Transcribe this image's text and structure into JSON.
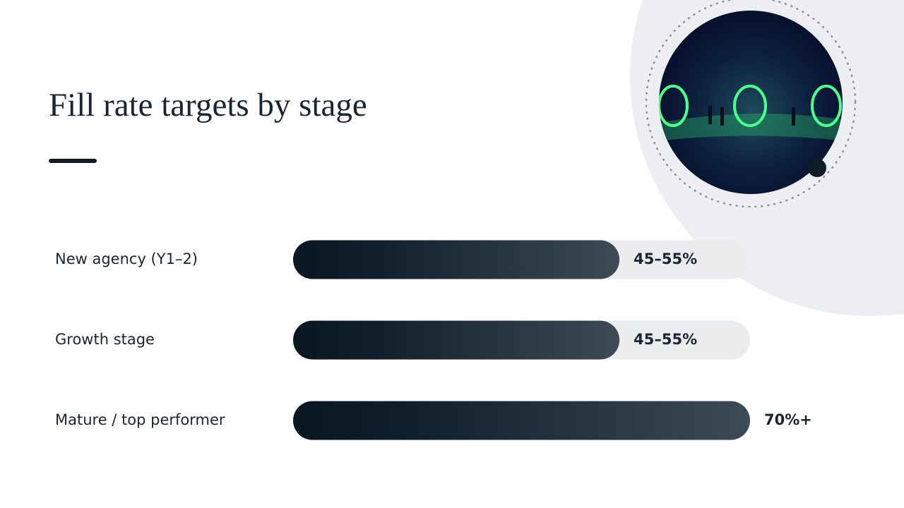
{
  "chart_data": {
    "type": "bar",
    "title": "Fill rate targets by stage",
    "categories": [
      "New agency (Y1–2)",
      "Growth stage",
      "Mature / top performer"
    ],
    "values": [
      50,
      50,
      70
    ],
    "value_labels": [
      "45–55%",
      "45–55%",
      "70%+"
    ],
    "xlim": [
      0,
      70
    ]
  }
}
